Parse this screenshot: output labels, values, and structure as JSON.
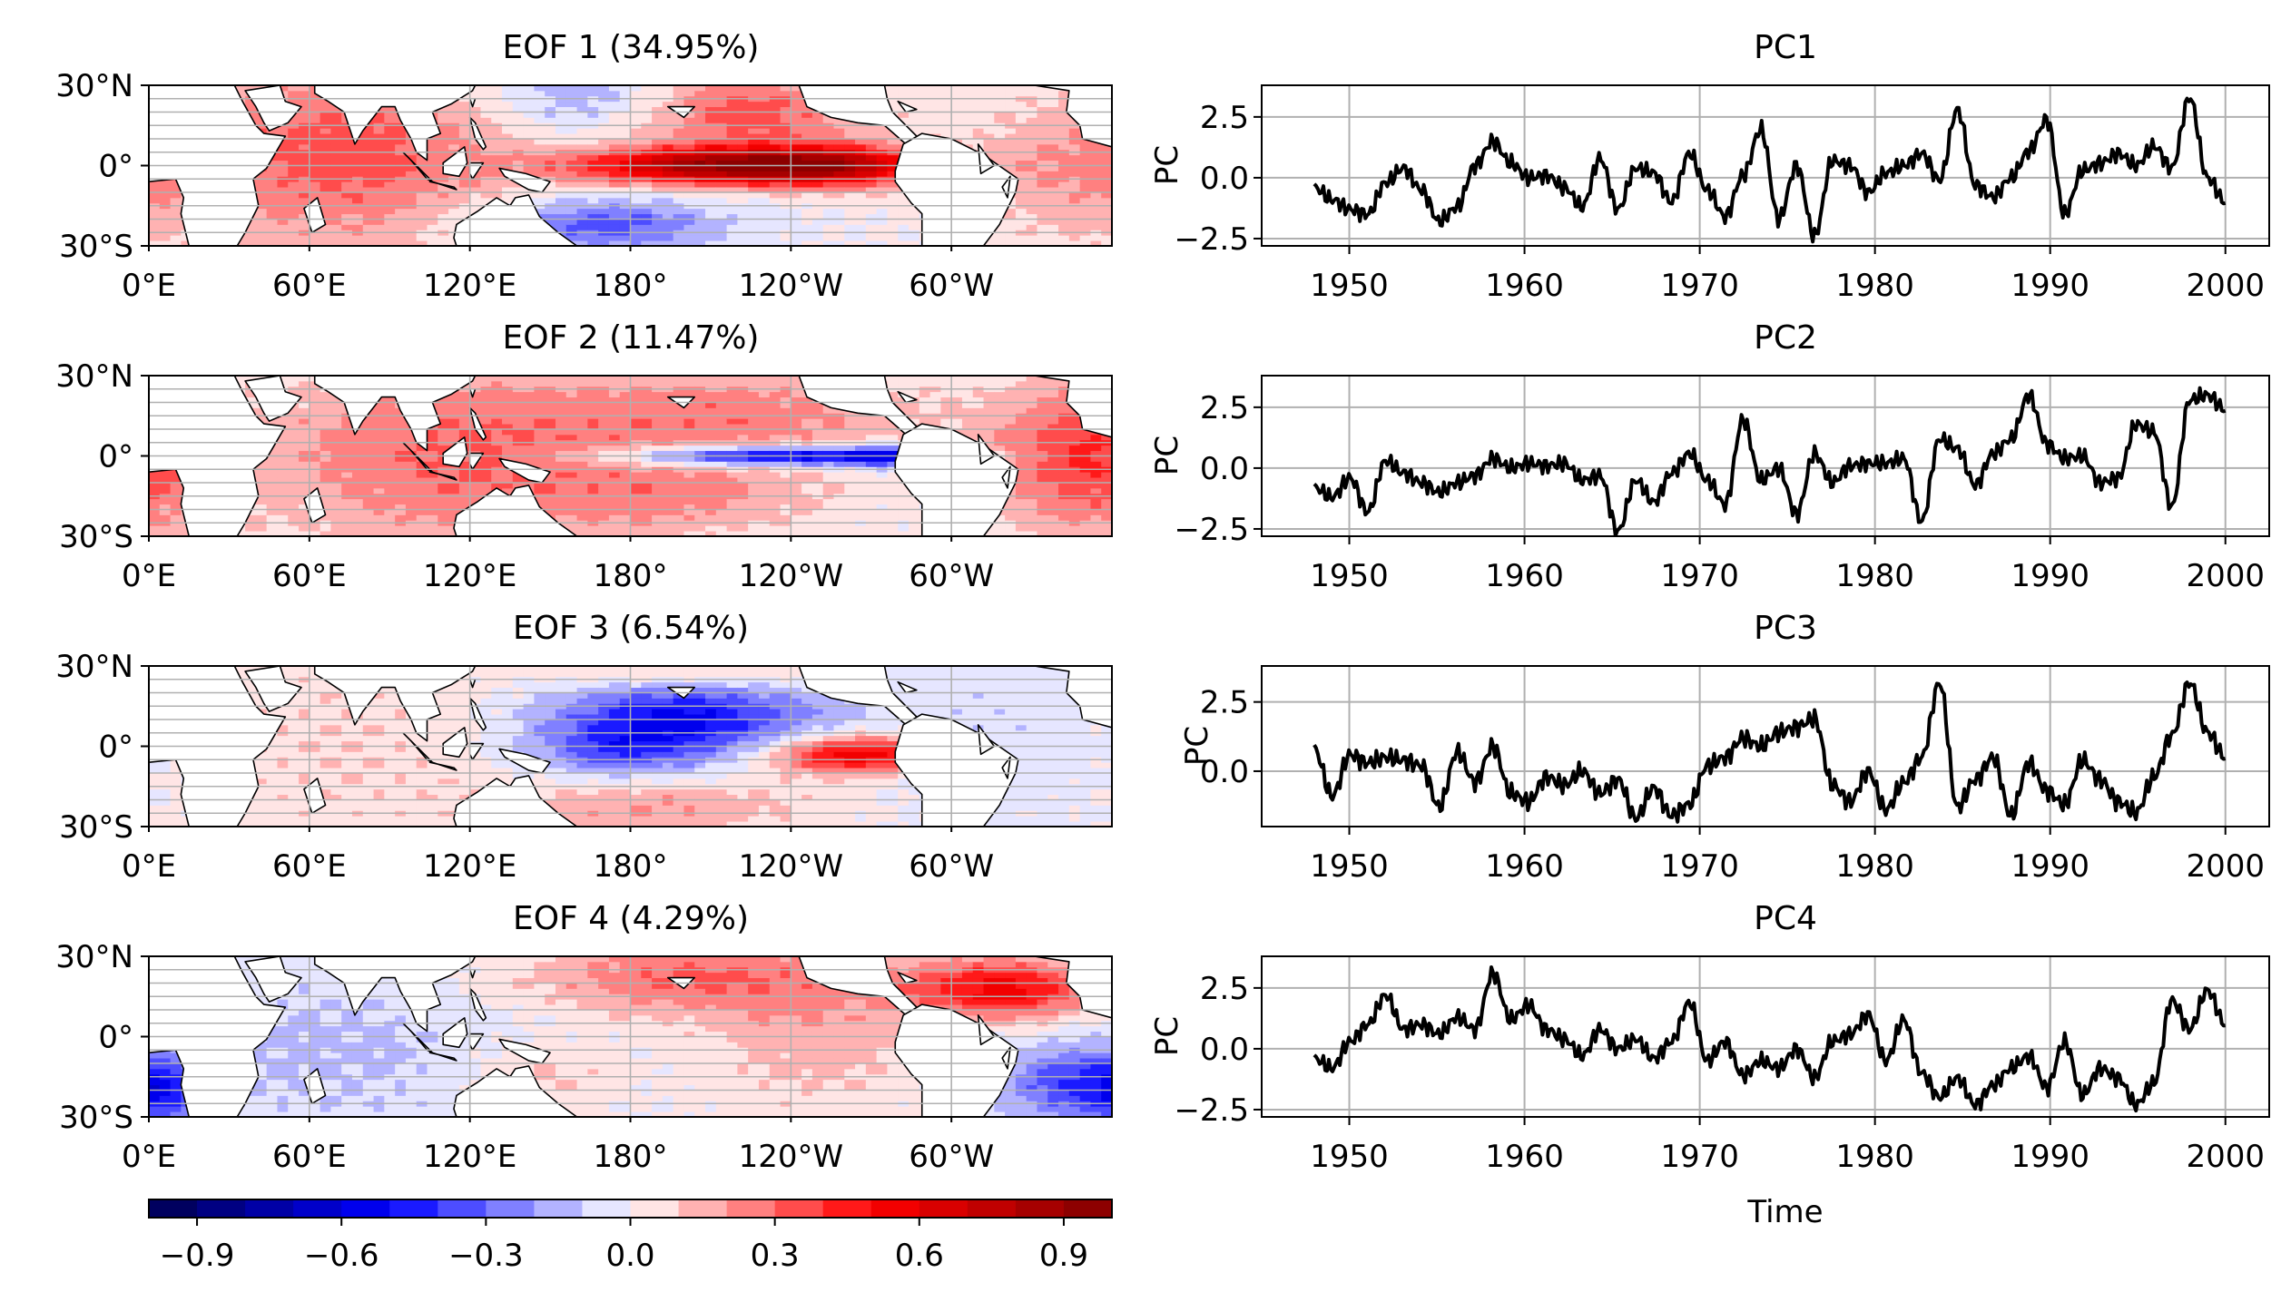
{
  "figure": {
    "colorbar": {
      "ticks": [
        -0.9,
        -0.6,
        -0.3,
        0.0,
        0.3,
        0.6,
        0.9
      ],
      "tick_labels": [
        "−0.9",
        "−0.6",
        "−0.3",
        "0.0",
        "0.3",
        "0.6",
        "0.9"
      ],
      "range": [
        -1.0,
        1.0
      ],
      "n_levels": 20,
      "cmap": "seismic",
      "low_color": "#00004d",
      "mid_color": "#ffffff",
      "high_color": "#800000"
    }
  },
  "chart_data": [
    {
      "type": "heatmap",
      "title": "EOF 1 (34.95%)",
      "map_extent": {
        "lon": [
          0,
          360
        ],
        "lat": [
          -30,
          30
        ]
      },
      "xticks": [
        "0°E",
        "60°E",
        "120°E",
        "180°",
        "120°W",
        "60°W"
      ],
      "yticks": [
        "30°N",
        "0°",
        "30°S"
      ],
      "grid": true,
      "patterns": [
        {
          "lon": 220,
          "lat": 0,
          "slon": 42,
          "slat": 5,
          "amp": 0.9
        },
        {
          "lon": 260,
          "lat": 0,
          "slon": 22,
          "slat": 6,
          "amp": 0.3
        },
        {
          "lon": 225,
          "lat": 20,
          "slon": 30,
          "slat": 10,
          "amp": 0.35
        },
        {
          "lon": 75,
          "lat": 5,
          "slon": 40,
          "slat": 25,
          "amp": 0.35
        },
        {
          "lon": 350,
          "lat": 0,
          "slon": 30,
          "slat": 20,
          "amp": 0.2
        },
        {
          "lon": 160,
          "lat": 25,
          "slon": 22,
          "slat": 8,
          "amp": -0.2
        },
        {
          "lon": 170,
          "lat": -22,
          "slon": 30,
          "slat": 7,
          "amp": -0.35
        }
      ]
    },
    {
      "type": "line",
      "title": "PC1",
      "ylabel": "PC",
      "xlabel": "",
      "xlim": [
        1945,
        2002.5
      ],
      "ylim": [
        -2.8,
        3.8
      ],
      "xticks": [
        1950,
        1960,
        1970,
        1980,
        1990,
        2000
      ],
      "yticks": [
        2.5,
        0.0,
        -2.5
      ],
      "ytick_labels": [
        "2.5",
        "0.0",
        "−2.5"
      ],
      "grid": true,
      "x_start": 1948,
      "x_end": 2000,
      "series": [
        {
          "values": [
            -0.4,
            -0.9,
            -1.3,
            -1.5,
            -0.2,
            0.4,
            -0.5,
            -1.8,
            -1.2,
            0.5,
            1.5,
            0.6,
            0.0,
            0.1,
            -0.4,
            -1.2,
            0.8,
            -1.3,
            0.4,
            0.2,
            -1.0,
            1.0,
            -0.5,
            -1.6,
            0.1,
            2.0,
            -1.7,
            0.5,
            -2.4,
            0.7,
            0.5,
            -0.6,
            0.2,
            0.5,
            1.0,
            -0.1,
            2.8,
            -0.3,
            -0.8,
            0.0,
            1.1,
            2.4,
            -1.5,
            0.3,
            0.6,
            1.0,
            0.5,
            1.3,
            0.4,
            3.3,
            0.0,
            -1.0
          ]
        }
      ]
    },
    {
      "type": "heatmap",
      "title": "EOF 2 (11.47%)",
      "map_extent": {
        "lon": [
          0,
          360
        ],
        "lat": [
          -30,
          30
        ]
      },
      "xticks": [
        "0°E",
        "60°E",
        "120°E",
        "180°",
        "120°W",
        "60°W"
      ],
      "yticks": [
        "30°N",
        "0°",
        "30°S"
      ],
      "grid": true,
      "patterns": [
        {
          "lon": 235,
          "lat": 0,
          "slon": 40,
          "slat": 2.5,
          "amp": -0.7
        },
        {
          "lon": 275,
          "lat": 0,
          "slon": 8,
          "slat": 3,
          "amp": -0.3
        },
        {
          "lon": 220,
          "lat": 15,
          "slon": 50,
          "slat": 12,
          "amp": 0.25
        },
        {
          "lon": 200,
          "lat": -15,
          "slon": 40,
          "slat": 10,
          "amp": 0.2
        },
        {
          "lon": 110,
          "lat": 0,
          "slon": 50,
          "slat": 25,
          "amp": 0.3
        },
        {
          "lon": 350,
          "lat": 0,
          "slon": 25,
          "slat": 20,
          "amp": 0.4
        }
      ]
    },
    {
      "type": "line",
      "title": "PC2",
      "ylabel": "PC",
      "xlabel": "",
      "xlim": [
        1945,
        2002.5
      ],
      "ylim": [
        -2.8,
        3.8
      ],
      "xticks": [
        1950,
        1960,
        1970,
        1980,
        1990,
        2000
      ],
      "yticks": [
        2.5,
        0.0,
        -2.5
      ],
      "ytick_labels": [
        "2.5",
        "0.0",
        "−2.5"
      ],
      "grid": true,
      "x_start": 1948,
      "x_end": 2000,
      "series": [
        {
          "values": [
            -0.8,
            -1.2,
            -0.4,
            -1.8,
            0.3,
            -0.2,
            -0.6,
            -1.0,
            -0.6,
            -0.3,
            0.4,
            0.0,
            0.2,
            0.1,
            0.2,
            -0.5,
            -0.3,
            -2.6,
            -0.5,
            -1.4,
            -0.2,
            0.6,
            -0.5,
            -1.5,
            2.0,
            -0.5,
            0.0,
            -1.9,
            0.6,
            -0.6,
            0.1,
            0.2,
            0.2,
            0.4,
            -2.2,
            1.2,
            0.8,
            -0.7,
            0.6,
            1.2,
            3.0,
            1.0,
            0.4,
            0.5,
            -0.6,
            -0.4,
            1.8,
            1.5,
            -1.6,
            2.8,
            3.0,
            2.4
          ]
        }
      ]
    },
    {
      "type": "heatmap",
      "title": "EOF 3 (6.54%)",
      "map_extent": {
        "lon": [
          0,
          360
        ],
        "lat": [
          -30,
          30
        ]
      },
      "xticks": [
        "0°E",
        "60°E",
        "120°E",
        "180°",
        "120°W",
        "60°W"
      ],
      "yticks": [
        "30°N",
        "0°",
        "30°S"
      ],
      "grid": true,
      "patterns": [
        {
          "lon": 200,
          "lat": 12,
          "slon": 35,
          "slat": 10,
          "amp": -0.5
        },
        {
          "lon": 175,
          "lat": -2,
          "slon": 25,
          "slat": 8,
          "amp": -0.3
        },
        {
          "lon": 265,
          "lat": -3,
          "slon": 22,
          "slat": 5,
          "amp": 0.6
        },
        {
          "lon": 190,
          "lat": -22,
          "slon": 40,
          "slat": 8,
          "amp": 0.2
        },
        {
          "lon": 200,
          "lat": 28,
          "slon": 35,
          "slat": 6,
          "amp": 0.2
        },
        {
          "lon": 60,
          "lat": 0,
          "slon": 60,
          "slat": 30,
          "amp": 0.1
        },
        {
          "lon": 330,
          "lat": 5,
          "slon": 40,
          "slat": 25,
          "amp": -0.1
        }
      ]
    },
    {
      "type": "line",
      "title": "PC3",
      "ylabel": "PC",
      "xlabel": "",
      "xlim": [
        1945,
        2002.5
      ],
      "ylim": [
        -2.0,
        3.8
      ],
      "xticks": [
        1950,
        1960,
        1970,
        1980,
        1990,
        2000
      ],
      "yticks": [
        2.5,
        0.0
      ],
      "ytick_labels": [
        "2.5",
        "0.0"
      ],
      "grid": true,
      "x_start": 1948,
      "x_end": 2000,
      "series": [
        {
          "values": [
            0.8,
            -0.9,
            0.6,
            0.3,
            0.5,
            0.4,
            0.2,
            -1.3,
            0.7,
            -0.4,
            0.9,
            -0.8,
            -1.1,
            -0.2,
            -0.5,
            0.0,
            -0.8,
            -0.3,
            -1.7,
            -0.6,
            -1.6,
            -1.2,
            0.2,
            0.5,
            1.2,
            0.9,
            1.4,
            1.6,
            1.9,
            -0.5,
            -1.1,
            0.0,
            -1.4,
            -0.4,
            0.5,
            3.2,
            -1.3,
            -0.3,
            0.5,
            -1.6,
            0.3,
            -0.7,
            -1.2,
            0.4,
            -0.3,
            -1.1,
            -1.5,
            -0.2,
            1.3,
            3.2,
            1.4,
            0.5
          ]
        }
      ]
    },
    {
      "type": "heatmap",
      "title": "EOF 4 (4.29%)",
      "map_extent": {
        "lon": [
          0,
          360
        ],
        "lat": [
          -30,
          30
        ]
      },
      "xticks": [
        "0°E",
        "60°E",
        "120°E",
        "180°",
        "120°W",
        "60°W"
      ],
      "yticks": [
        "30°N",
        "0°",
        "30°S"
      ],
      "grid": true,
      "patterns": [
        {
          "lon": 320,
          "lat": 18,
          "slon": 25,
          "slat": 8,
          "amp": 0.55
        },
        {
          "lon": 200,
          "lat": 22,
          "slon": 45,
          "slat": 10,
          "amp": 0.3
        },
        {
          "lon": 250,
          "lat": 0,
          "slon": 30,
          "slat": 20,
          "amp": 0.15
        },
        {
          "lon": 345,
          "lat": -18,
          "slon": 20,
          "slat": 10,
          "amp": -0.35
        },
        {
          "lon": 5,
          "lat": -20,
          "slon": 10,
          "slat": 8,
          "amp": -0.3
        },
        {
          "lon": 70,
          "lat": -5,
          "slon": 55,
          "slat": 25,
          "amp": -0.12
        },
        {
          "lon": 145,
          "lat": -15,
          "slon": 20,
          "slat": 10,
          "amp": 0.15
        }
      ]
    },
    {
      "type": "line",
      "title": "PC4",
      "ylabel": "PC",
      "xlabel": "Time",
      "xlim": [
        1945,
        2002.5
      ],
      "ylim": [
        -2.8,
        3.8
      ],
      "xticks": [
        1950,
        1960,
        1970,
        1980,
        1990,
        2000
      ],
      "yticks": [
        2.5,
        0.0,
        -2.5
      ],
      "ytick_labels": [
        "2.5",
        "0.0",
        "−2.5"
      ],
      "grid": true,
      "x_start": 1948,
      "x_end": 2000,
      "series": [
        {
          "values": [
            -0.4,
            -0.8,
            0.3,
            1.0,
            2.2,
            0.8,
            1.0,
            0.6,
            1.3,
            0.8,
            3.1,
            1.2,
            1.8,
            0.8,
            0.4,
            -0.3,
            0.8,
            0.0,
            0.4,
            -0.4,
            0.3,
            1.9,
            -0.5,
            0.3,
            -1.1,
            -0.5,
            -0.8,
            0.0,
            -1.2,
            0.3,
            0.6,
            1.4,
            -0.5,
            1.2,
            -1.0,
            -2.0,
            -1.2,
            -2.3,
            -1.5,
            -0.8,
            -0.3,
            -1.6,
            0.3,
            -1.9,
            -0.8,
            -1.2,
            -2.3,
            -1.4,
            2.0,
            0.8,
            2.4,
            1.0
          ]
        }
      ]
    }
  ]
}
